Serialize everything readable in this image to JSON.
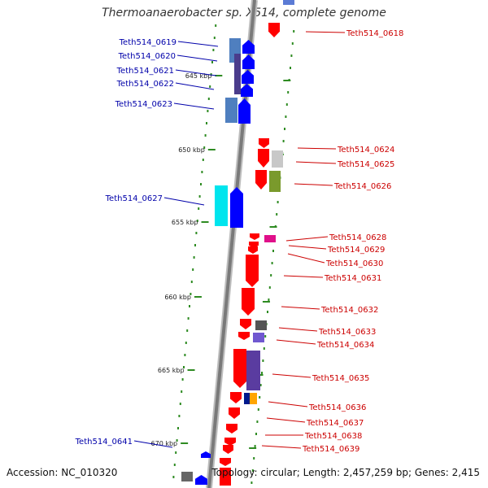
{
  "title": "Thermoanaerobacter sp. X514, complete genome",
  "footer": {
    "accession": "Accession: NC_010320",
    "topology": "Topology: circular; Length: 2,457,259 bp; Genes: 2,415"
  },
  "ticks": [
    {
      "label": "645 kbp"
    },
    {
      "label": "650 kbp"
    },
    {
      "label": "655 kbp"
    },
    {
      "label": "660 kbp"
    },
    {
      "label": "665 kbp"
    },
    {
      "label": "670 kbp"
    }
  ],
  "genes": [
    {
      "name": "Teth514_0618",
      "strand": "forward",
      "color": "#ff0000"
    },
    {
      "name": "Teth514_0619",
      "strand": "reverse",
      "color": "#0000ff"
    },
    {
      "name": "Teth514_0620",
      "strand": "reverse",
      "color": "#0000ff"
    },
    {
      "name": "Teth514_0621",
      "strand": "reverse",
      "color": "#0000ff"
    },
    {
      "name": "Teth514_0622",
      "strand": "reverse",
      "color": "#0000ff"
    },
    {
      "name": "Teth514_0623",
      "strand": "reverse",
      "color": "#0000ff"
    },
    {
      "name": "Teth514_0624",
      "strand": "forward",
      "color": "#ff0000"
    },
    {
      "name": "Teth514_0625",
      "strand": "forward",
      "color": "#ff0000"
    },
    {
      "name": "Teth514_0626",
      "strand": "forward",
      "color": "#ff0000"
    },
    {
      "name": "Teth514_0627",
      "strand": "reverse",
      "color": "#0000ff"
    },
    {
      "name": "Teth514_0628",
      "strand": "forward",
      "color": "#ff0000"
    },
    {
      "name": "Teth514_0629",
      "strand": "forward",
      "color": "#ff0000"
    },
    {
      "name": "Teth514_0630",
      "strand": "forward",
      "color": "#ff0000"
    },
    {
      "name": "Teth514_0631",
      "strand": "forward",
      "color": "#ff0000"
    },
    {
      "name": "Teth514_0632",
      "strand": "forward",
      "color": "#ff0000"
    },
    {
      "name": "Teth514_0633",
      "strand": "forward",
      "color": "#ff0000"
    },
    {
      "name": "Teth514_0634",
      "strand": "forward",
      "color": "#ff0000"
    },
    {
      "name": "Teth514_0635",
      "strand": "forward",
      "color": "#ff0000"
    },
    {
      "name": "Teth514_0636",
      "strand": "forward",
      "color": "#ff0000"
    },
    {
      "name": "Teth514_0637",
      "strand": "forward",
      "color": "#ff0000"
    },
    {
      "name": "Teth514_0638",
      "strand": "forward",
      "color": "#ff0000"
    },
    {
      "name": "Teth514_0639",
      "strand": "forward",
      "color": "#ff0000"
    },
    {
      "name": "Teth514_0641",
      "strand": "reverse",
      "color": "#0000ff"
    }
  ],
  "colors": {
    "forward": "#ff0000",
    "reverse": "#0000ff",
    "forward_label": "#cc0000",
    "reverse_label": "#0000aa",
    "backbone": "#8c8c8c",
    "tick_mark": "#2e8b22"
  }
}
